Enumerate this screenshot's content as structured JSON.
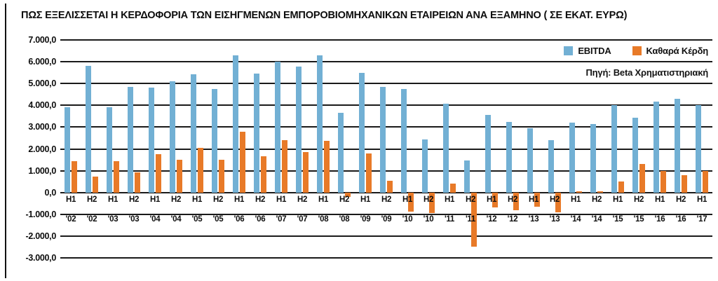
{
  "title": "ΠΩΣ ΕΞΕΛΙΣΣΕΤΑΙ Η ΚΕΡΔΟΦΟΡΙΑ ΤΩΝ ΕΙΣΗΓΜΕΝΩΝ ΕΜΠΟΡΟΒΙΟΜΗΧΑΝΙΚΩΝ ΕΤΑΙΡΕΙΩΝ ΑΝΑ ΕΞΑΜΗΝΟ ( ΣΕ ΕΚΑΤ. ΕΥΡΩ)",
  "source": "Πηγή: Beta Χρηματιστηριακή",
  "colors": {
    "ebitda_blue": "#72b0d4",
    "net_profit_orange": "#e87a28",
    "gridline_black": "#1a1a1a"
  },
  "chart_data": {
    "type": "bar",
    "title": "ΠΩΣ ΕΞΕΛΙΣΣΕΤΑΙ Η ΚΕΡΔΟΦΟΡΙΑ ΤΩΝ ΕΙΣΗΓΜΕΝΩΝ ΕΜΠΟΡΟΒΙΟΜΗΧΑΝΙΚΩΝ ΕΤΑΙΡΕΙΩΝ ΑΝΑ ΕΞΑΜΗΝΟ ( ΣΕ ΕΚΑΤ. ΕΥΡΩ)",
    "units": "εκατ. ευρώ",
    "categories": [
      "H1 '02",
      "H2 '02",
      "H1 '03",
      "H2 '03",
      "H1 '04",
      "H2 '04",
      "H1 '05",
      "H2 '05",
      "H1 '06",
      "H2 '06",
      "H1 '07",
      "H2 '07",
      "H1 '08",
      "H2 '08",
      "H1 '09",
      "H2 '09",
      "H1 '10",
      "H2 '10",
      "H1 '11",
      "H2 '11",
      "H1 '12",
      "H2 '12",
      "H1 '13",
      "H2 '13",
      "H1 '14",
      "H2 '14",
      "H1 '15",
      "H2 '15",
      "H1 '16",
      "H2 '16",
      "H1 '17"
    ],
    "category_rows": {
      "half": [
        "H1",
        "H2",
        "H1",
        "H2",
        "H1",
        "H2",
        "H1",
        "H2",
        "H1",
        "H2",
        "H1",
        "H2",
        "H1",
        "H2",
        "H1",
        "H2",
        "H1",
        "H2",
        "H1",
        "H2",
        "H1",
        "H2",
        "H1",
        "H2",
        "H1",
        "H2",
        "H1",
        "H2",
        "H1",
        "H2",
        "H1"
      ],
      "year": [
        "'02",
        "'02",
        "'03",
        "'03",
        "'04",
        "'04",
        "'05",
        "'05",
        "'06",
        "'06",
        "'07",
        "'07",
        "'08",
        "'08",
        "'09",
        "'09",
        "'10",
        "'10",
        "'11",
        "'11",
        "'12",
        "'12",
        "'13",
        "'13",
        "'14",
        "'14",
        "'15",
        "'15",
        "'16",
        "'16",
        "'17"
      ]
    },
    "series": [
      {
        "name": "EBITDA",
        "color": "#72b0d4",
        "values": [
          3900,
          5800,
          3900,
          4850,
          4800,
          5100,
          5440,
          4750,
          6280,
          5450,
          6000,
          5780,
          6280,
          3660,
          5500,
          4860,
          4750,
          2430,
          4090,
          1460,
          3550,
          3230,
          2960,
          2410,
          3200,
          3150,
          4000,
          3430,
          4180,
          4290,
          4000
        ]
      },
      {
        "name": "Καθαρά Κέρδη",
        "color": "#e87a28",
        "values": [
          1430,
          730,
          1430,
          920,
          1750,
          1510,
          2050,
          1500,
          2800,
          1670,
          2400,
          1860,
          2360,
          -200,
          1780,
          550,
          -890,
          -950,
          400,
          -2500,
          -700,
          -800,
          -650,
          -900,
          70,
          40,
          510,
          1300,
          1000,
          810,
          990
        ]
      }
    ],
    "ylim": [
      -3000,
      7000
    ],
    "ytick_step": 1000,
    "ytick_labels": [
      "7.000,0",
      "6.000,0",
      "5.000,0",
      "4.000,0",
      "3.000,0",
      "2.000,0",
      "1.000,0",
      "0,0",
      "-1.000,0",
      "-2.000,0",
      "-3.000,0"
    ],
    "grid": true,
    "legend_position": "top-right"
  }
}
